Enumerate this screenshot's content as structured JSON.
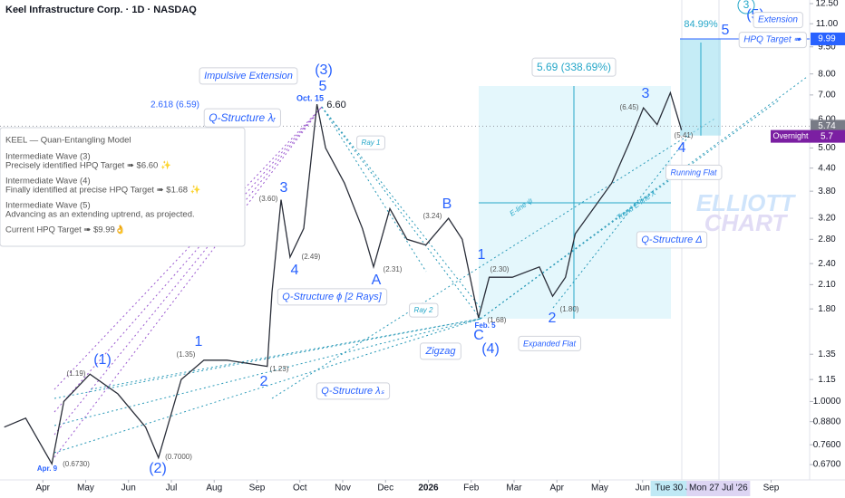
{
  "chart_data": {
    "type": "line",
    "title": "Keel Infrastructure Corp. · 1D · NASDAQ",
    "log_scale": true,
    "grid": false,
    "xlim": [
      0,
      18.9
    ],
    "ylim": [
      0.608,
      12.79
    ],
    "xticks": [
      {
        "value": 1,
        "label": "Apr"
      },
      {
        "value": 2,
        "label": "May"
      },
      {
        "value": 3,
        "label": "Jun"
      },
      {
        "value": 4,
        "label": "Jul"
      },
      {
        "value": 5,
        "label": "Aug"
      },
      {
        "value": 6,
        "label": "Sep"
      },
      {
        "value": 7,
        "label": "Oct"
      },
      {
        "value": 8,
        "label": "Nov"
      },
      {
        "value": 9,
        "label": "Dec"
      },
      {
        "value": 10,
        "label": "2026"
      },
      {
        "value": 11,
        "label": "Feb"
      },
      {
        "value": 12,
        "label": "Mar"
      },
      {
        "value": 13,
        "label": "Apr"
      },
      {
        "value": 14,
        "label": "May"
      },
      {
        "value": 15,
        "label": "Jun"
      },
      {
        "value": 18,
        "label": "Sep"
      }
    ],
    "x_highlights": [
      {
        "value": 15.78,
        "label": "Tue 30 Jul"
      },
      {
        "value": 16.77,
        "label": "Mon 27 Jul '26"
      }
    ],
    "yticks": [
      {
        "value": 12.5,
        "label": "12.50"
      },
      {
        "value": 11,
        "label": "11.00"
      },
      {
        "value": 9.5,
        "label": "9.50"
      },
      {
        "value": 8,
        "label": "8.00"
      },
      {
        "value": 7,
        "label": "7.00"
      },
      {
        "value": 6,
        "label": "6.00"
      },
      {
        "value": 5,
        "label": "5.00"
      },
      {
        "value": 4.4,
        "label": "4.40"
      },
      {
        "value": 3.8,
        "label": "3.80"
      },
      {
        "value": 3.2,
        "label": "3.20"
      },
      {
        "value": 2.8,
        "label": "2.80"
      },
      {
        "value": 2.4,
        "label": "2.40"
      },
      {
        "value": 2.1,
        "label": "2.10"
      },
      {
        "value": 1.8,
        "label": "1.80"
      },
      {
        "value": 1.35,
        "label": "1.35"
      },
      {
        "value": 1.15,
        "label": "1.15"
      },
      {
        "value": 1,
        "label": "1.0000"
      },
      {
        "value": 0.88,
        "label": "0.8800"
      },
      {
        "value": 0.76,
        "label": "0.7600"
      },
      {
        "value": 0.67,
        "label": "0.6700"
      }
    ],
    "series": [
      {
        "color": "#2a2e39",
        "x": [
          0.1,
          0.6,
          1.21,
          1.49,
          2.1,
          2.75,
          3.4,
          3.7,
          4.23,
          4.76,
          5.3,
          6.24,
          6.35,
          6.56,
          6.77,
          7.09,
          7.4,
          7.6,
          8.04,
          8.46,
          8.72,
          9.1,
          9.5,
          9.94,
          10.47,
          10.79,
          11.17,
          11.42,
          11.96,
          12.59,
          12.9,
          13.2,
          13.43,
          13.85,
          14.28,
          14.7,
          15.02,
          15.34,
          15.65,
          15.91
        ],
        "values": [
          0.85,
          0.9,
          0.673,
          1.0,
          1.19,
          1.05,
          0.85,
          0.7,
          1.15,
          1.3,
          1.3,
          1.25,
          2.0,
          3.6,
          2.5,
          3.0,
          6.6,
          5.0,
          4.0,
          3.0,
          2.35,
          3.4,
          2.8,
          2.7,
          3.2,
          2.8,
          1.7,
          2.2,
          2.2,
          2.35,
          1.95,
          2.2,
          2.9,
          3.4,
          4.0,
          5.2,
          6.45,
          5.8,
          7.1,
          5.6
        ]
      }
    ],
    "last_price": 5.74,
    "overnight": {
      "label": "Overnight",
      "value": 5.7
    },
    "target_price": 9.99,
    "info_box": [
      "KEEL — Quan-Entangling Model",
      "Intermediate Wave (3)",
      "Precisely identified HPQ Target ➠ $6.60 ✨",
      "Intermediate Wave (4)",
      "Finally identified at precise HPQ Target ➠ $1.68 ✨",
      "Intermediate Wave (5)",
      "Advancing as an extending uptrend, as projected.",
      "Current HPQ Target ➠ $9.99👌"
    ],
    "annotations": [
      "(1)",
      "(2)",
      "(3)",
      "5",
      "(4)",
      "(5)",
      "5",
      "1",
      "2",
      "3",
      "4",
      "A",
      "B",
      "C",
      "1",
      "2",
      "3",
      "4",
      "Impulsive Extension",
      "Q-Structure λᵣ",
      "2.618 (6.59)",
      "Oct. 15",
      "6.60",
      "(3.60)",
      "(2.49)",
      "(2.31)",
      "(3.24)",
      "(1.68)",
      "Feb. 5",
      "(2.30)",
      "(1.80)",
      "(1.35)",
      "(1.19)",
      "(1.23)",
      "(0.7000)",
      "(0.6730)",
      "Apr. 9",
      "(6.45)",
      "(5.41)",
      "Q-Structure ϕ [2 Rays]",
      "Ray 1",
      "Ray 2",
      "Zigzag",
      "Q-Structure λₛ",
      "Expanded Flat",
      "Running Flat",
      "Q-Structure Δ",
      "Extension",
      "HPQ Target ➠",
      "84.99%",
      "5.69 (338.69%)",
      "E-line ψ",
      "Trend E-line X",
      "ELLIOTT",
      "CHART",
      "3"
    ]
  }
}
